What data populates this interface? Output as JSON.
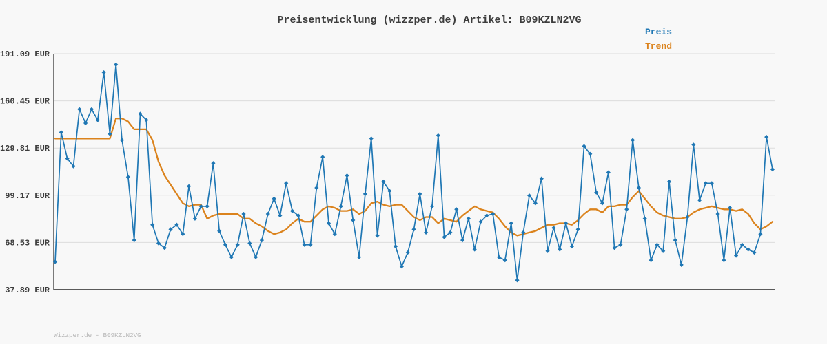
{
  "title": "Preisentwicklung (wizzper.de) Artikel: B09KZLN2VG",
  "legend": {
    "preis": "Preis",
    "trend": "Trend"
  },
  "watermark": "Wizzper.de - B09KZLN2VG",
  "colors": {
    "background": "#f8f8f8",
    "grid": "#dcdcdc",
    "axis": "#5a5a5a",
    "price": "#1f77b4",
    "trend": "#db831d",
    "title_text": "#3d3d3d",
    "tick_text": "#3d3d3d",
    "watermark_text": "#b8b8b8"
  },
  "chart_data": {
    "type": "line",
    "title": "Preisentwicklung (wizzper.de) Artikel: B09KZLN2VG",
    "xlabel": "",
    "ylabel": "EUR",
    "ylim": [
      37.89,
      191.09
    ],
    "y_ticks": [
      "191.09 EUR",
      "160.45 EUR",
      "129.81 EUR",
      "99.17 EUR",
      "68.53 EUR",
      "37.89 EUR"
    ],
    "x_tick_labels": "none",
    "grid": "horizontal",
    "legend_position": "top-right",
    "series": [
      {
        "name": "Preis",
        "color": "#1f77b4",
        "marker": "diamond",
        "values": [
          56,
          140,
          123,
          118,
          155,
          146,
          155,
          148,
          179,
          139,
          184,
          135,
          111,
          70,
          152,
          148,
          80,
          68,
          65,
          77,
          80,
          74,
          105,
          84,
          92,
          92,
          120,
          76,
          67,
          59,
          67,
          87,
          68,
          59,
          70,
          87,
          97,
          86,
          107,
          89,
          86,
          67,
          67,
          104,
          124,
          81,
          74,
          92,
          112,
          83,
          59,
          100,
          136,
          73,
          108,
          102,
          66,
          53,
          62,
          77,
          100,
          75,
          92,
          138,
          72,
          75,
          90,
          70,
          84,
          64,
          82,
          86,
          87,
          59,
          57,
          81,
          44,
          75,
          99,
          94,
          110,
          63,
          78,
          64,
          81,
          66,
          77,
          131,
          126,
          101,
          94,
          114,
          65,
          67,
          90,
          135,
          104,
          84,
          57,
          67,
          63,
          108,
          70,
          54,
          85,
          132,
          96,
          107,
          107,
          87,
          57,
          91,
          60,
          67,
          64,
          62,
          74,
          137,
          116
        ]
      },
      {
        "name": "Trend",
        "color": "#db831d",
        "marker": "none",
        "values": [
          136,
          136,
          136,
          136,
          136,
          136,
          136,
          136,
          136,
          136,
          149,
          149,
          147,
          142,
          142,
          142,
          135,
          121,
          112,
          106,
          100,
          94,
          92,
          93,
          93,
          84,
          86,
          87,
          87,
          87,
          87,
          84,
          84,
          81,
          79,
          76,
          74,
          75,
          77,
          81,
          84,
          82,
          82,
          86,
          90,
          92,
          91,
          89,
          89,
          90,
          87,
          89,
          94,
          95,
          93,
          92,
          93,
          93,
          89,
          85,
          83,
          85,
          85,
          81,
          84,
          83,
          82,
          86,
          89,
          92,
          90,
          89,
          88,
          84,
          79,
          75,
          73,
          74,
          75,
          76,
          78,
          80,
          80,
          81,
          81,
          80,
          83,
          87,
          90,
          90,
          88,
          92,
          92,
          93,
          93,
          98,
          102,
          97,
          92,
          88,
          86,
          85,
          84,
          84,
          85,
          88,
          90,
          91,
          92,
          91,
          90,
          90,
          89,
          90,
          87,
          81,
          77,
          79,
          82
        ]
      }
    ]
  }
}
